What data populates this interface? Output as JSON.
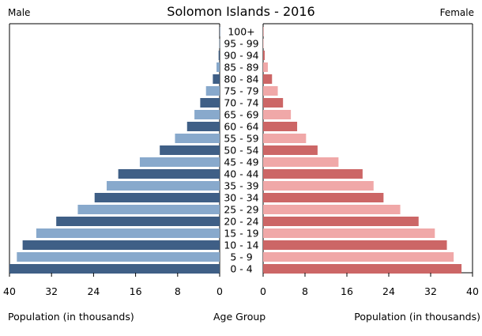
{
  "chart_data": {
    "type": "bar",
    "title": "Solomon Islands - 2016",
    "left_label": "Male",
    "right_label": "Female",
    "xlabel_left": "Population (in thousands)",
    "xlabel_center": "Age Group",
    "xlabel_right": "Population (in thousands)",
    "xlim": [
      0,
      40
    ],
    "left_ticks": [
      "40",
      "32",
      "24",
      "16",
      "8",
      "0"
    ],
    "right_ticks": [
      "0",
      "8",
      "16",
      "24",
      "32",
      "40"
    ],
    "categories": [
      "100+",
      "95 - 99",
      "90 - 94",
      "85 - 89",
      "80 - 84",
      "75 - 79",
      "70 - 74",
      "65 - 69",
      "60 - 64",
      "55 - 59",
      "50 - 54",
      "45 - 49",
      "40 - 44",
      "35 - 39",
      "30 - 34",
      "25 - 29",
      "20 - 24",
      "15 - 19",
      "10 - 14",
      "5 - 9",
      "0 - 4"
    ],
    "series": [
      {
        "name": "Male",
        "values": [
          0.01,
          0.05,
          0.2,
          0.6,
          1.3,
          2.6,
          3.7,
          4.8,
          6.2,
          8.5,
          11.4,
          15.2,
          19.3,
          21.5,
          23.8,
          27.0,
          31.1,
          34.9,
          37.5,
          38.6,
          40.0
        ]
      },
      {
        "name": "Female",
        "values": [
          0.02,
          0.08,
          0.3,
          0.9,
          1.7,
          2.8,
          3.8,
          5.3,
          6.5,
          8.2,
          10.4,
          14.4,
          19.0,
          21.1,
          23.0,
          26.2,
          29.7,
          32.8,
          35.1,
          36.4,
          37.9
        ]
      }
    ],
    "colors": {
      "male_dark": "#3f5f86",
      "male_light": "#88a9cc",
      "female_dark": "#cc6666",
      "female_light": "#f0a8a8"
    }
  }
}
